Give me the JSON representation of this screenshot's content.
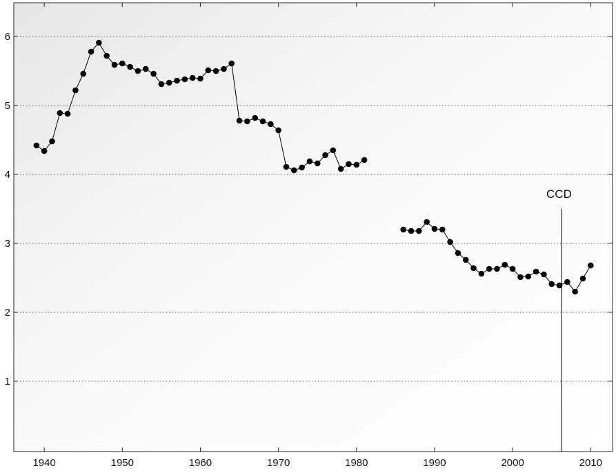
{
  "chart_data": {
    "type": "line",
    "x": [
      1939,
      1940,
      1941,
      1942,
      1943,
      1944,
      1945,
      1946,
      1947,
      1948,
      1949,
      1950,
      1951,
      1952,
      1953,
      1954,
      1955,
      1956,
      1957,
      1958,
      1959,
      1960,
      1961,
      1962,
      1963,
      1964,
      1965,
      1966,
      1967,
      1968,
      1969,
      1970,
      1971,
      1972,
      1973,
      1974,
      1975,
      1976,
      1977,
      1978,
      1979,
      1980,
      1981,
      1982,
      1983,
      1984,
      1985,
      1986,
      1987,
      1988,
      1989,
      1990,
      1991,
      1992,
      1993,
      1994,
      1995,
      1996,
      1997,
      1998,
      1999,
      2000,
      2001,
      2002,
      2003,
      2004,
      2005,
      2006,
      2007,
      2008,
      2009,
      2010
    ],
    "values": [
      4.42,
      4.34,
      4.48,
      4.89,
      4.88,
      5.22,
      5.46,
      5.78,
      5.91,
      5.72,
      5.59,
      5.61,
      5.56,
      5.5,
      5.53,
      5.46,
      5.31,
      5.33,
      5.36,
      5.38,
      5.4,
      5.39,
      5.51,
      5.5,
      5.53,
      5.61,
      4.78,
      4.77,
      4.82,
      4.77,
      4.73,
      4.64,
      4.11,
      4.06,
      4.1,
      4.19,
      4.16,
      4.28,
      4.35,
      4.08,
      4.15,
      4.14,
      4.21,
      null,
      null,
      null,
      null,
      3.2,
      3.18,
      3.18,
      3.31,
      3.21,
      3.2,
      3.02,
      2.86,
      2.76,
      2.64,
      2.56,
      2.63,
      2.63,
      2.69,
      2.63,
      2.51,
      2.52,
      2.59,
      2.55,
      2.41,
      2.39,
      2.44,
      2.3,
      2.49,
      2.68
    ],
    "color": "#000000",
    "xlim": [
      1936.1,
      2012.8
    ],
    "ylim": [
      -0.02,
      6.49
    ],
    "xticks": [
      1940,
      1950,
      1960,
      1970,
      1980,
      1990,
      2000,
      2010
    ],
    "yticks": [
      1,
      2,
      3,
      4,
      5,
      6
    ],
    "grid": true,
    "annotation": {
      "text": "CCD",
      "x": 2006.3,
      "y": 3.5
    }
  }
}
